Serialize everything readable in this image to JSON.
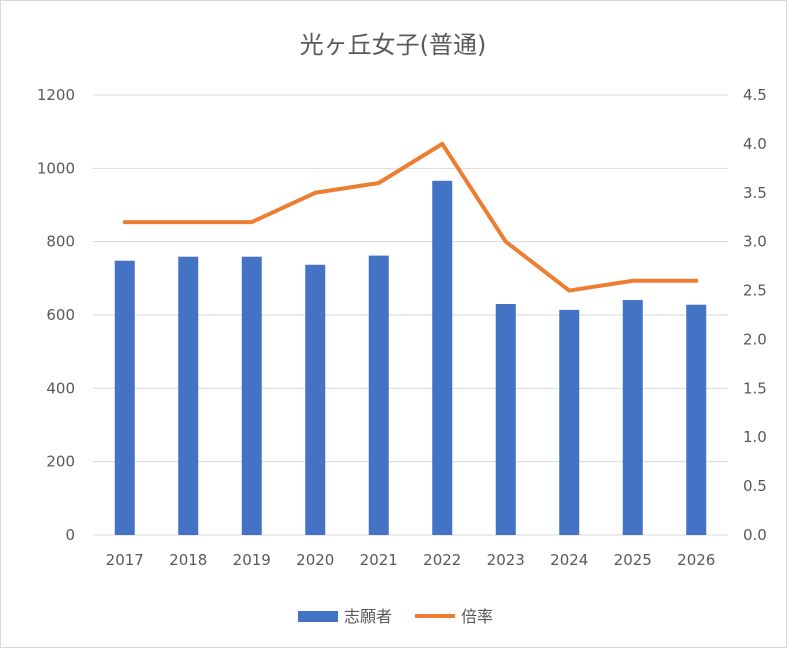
{
  "chart_data": {
    "type": "bar",
    "title": "光ヶ丘女子(普通)",
    "categories": [
      "2017",
      "2018",
      "2019",
      "2020",
      "2021",
      "2022",
      "2023",
      "2024",
      "2025",
      "2026"
    ],
    "series": [
      {
        "name": "志願者",
        "type": "bar",
        "axis": "left",
        "color": "#4472C4",
        "values": [
          748,
          759,
          759,
          737,
          762,
          966,
          630,
          614,
          641,
          628
        ]
      },
      {
        "name": "倍率",
        "type": "line",
        "axis": "right",
        "color": "#ED7D31",
        "values": [
          3.2,
          3.2,
          3.2,
          3.5,
          3.6,
          4.0,
          3.0,
          2.5,
          2.6,
          2.6
        ]
      }
    ],
    "y_left": {
      "min": 0,
      "max": 1200,
      "step": 200,
      "tick_labels": [
        "0",
        "200",
        "400",
        "600",
        "800",
        "1000",
        "1200"
      ]
    },
    "y_right": {
      "min": 0,
      "max": 4.5,
      "step": 0.5,
      "tick_labels": [
        "0.0",
        "0.5",
        "1.0",
        "1.5",
        "2.0",
        "2.5",
        "3.0",
        "3.5",
        "4.0",
        "4.5"
      ]
    },
    "grid": true,
    "legend": "bottom-center",
    "gridline_color": "#d9d9d9"
  }
}
